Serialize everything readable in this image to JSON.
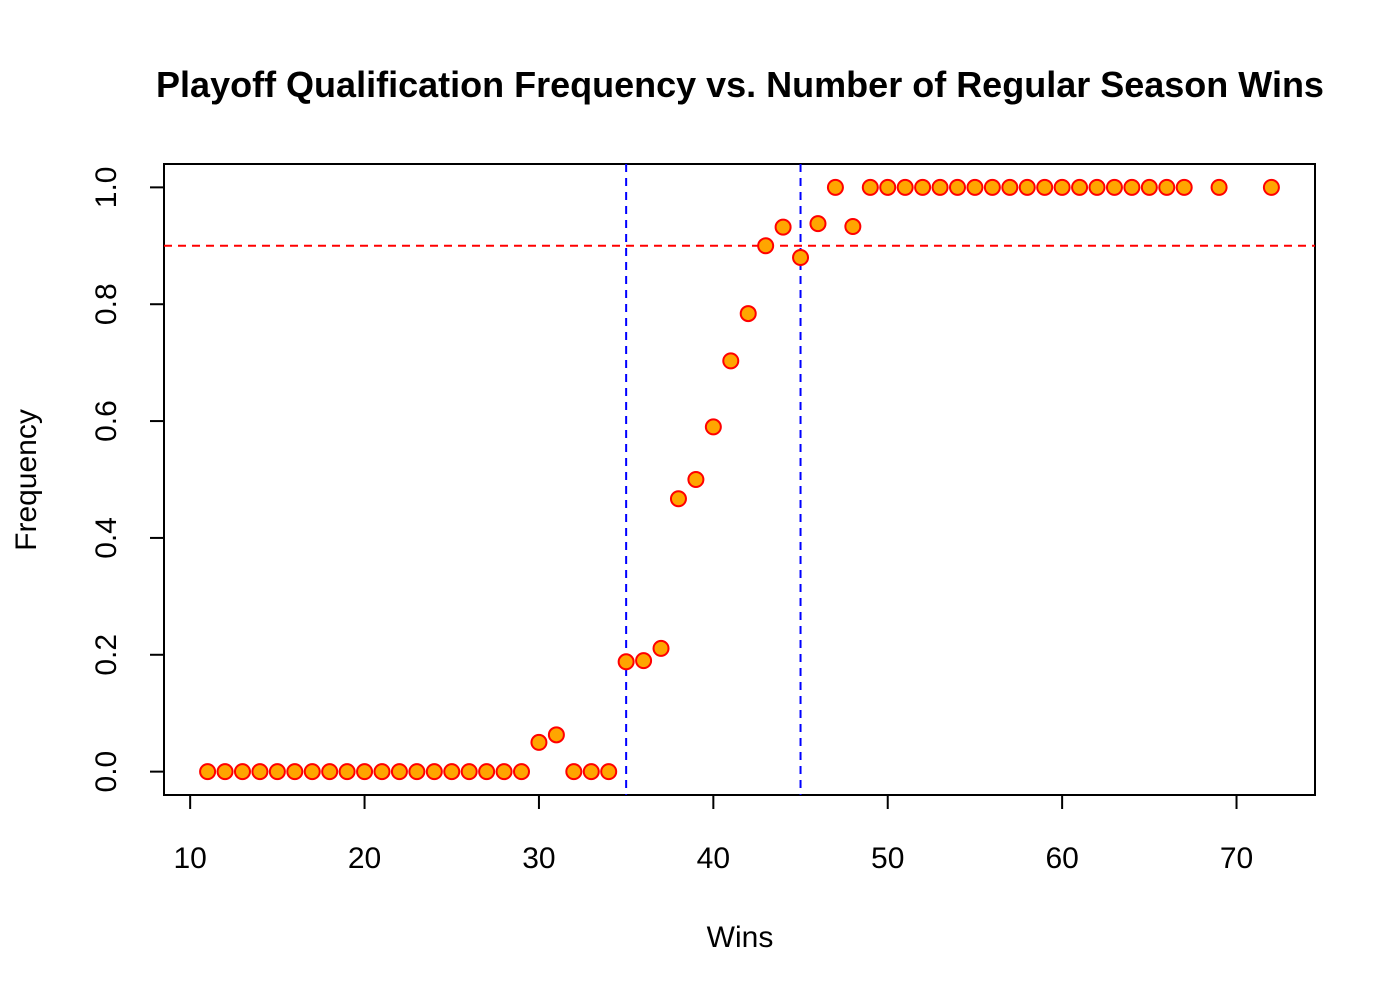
{
  "chart_data": {
    "type": "scatter",
    "title": "Playoff Qualification Frequency vs. Number of Regular Season Wins",
    "xlabel": "Wins",
    "ylabel": "Frequency",
    "xlim": [
      8.5,
      74.5
    ],
    "ylim": [
      -0.04,
      1.04
    ],
    "x_ticks": [
      10,
      20,
      30,
      40,
      50,
      60,
      70
    ],
    "x_tick_labels": [
      "10",
      "20",
      "30",
      "40",
      "50",
      "60",
      "70"
    ],
    "y_ticks": [
      0.0,
      0.2,
      0.4,
      0.6,
      0.8,
      1.0
    ],
    "y_tick_labels": [
      "0.0",
      "0.2",
      "0.4",
      "0.6",
      "0.8",
      "1.0"
    ],
    "grid": false,
    "legend": "none",
    "marker": {
      "fill": "#FFA500",
      "stroke": "#FF0000"
    },
    "reference_lines": [
      {
        "orientation": "horizontal",
        "value": 0.9,
        "color": "#FF0000",
        "style": "dashed"
      },
      {
        "orientation": "vertical",
        "value": 35,
        "color": "#0000FF",
        "style": "dashed"
      },
      {
        "orientation": "vertical",
        "value": 45,
        "color": "#0000FF",
        "style": "dashed"
      }
    ],
    "points": [
      {
        "x": 11,
        "y": 0.0
      },
      {
        "x": 12,
        "y": 0.0
      },
      {
        "x": 13,
        "y": 0.0
      },
      {
        "x": 14,
        "y": 0.0
      },
      {
        "x": 15,
        "y": 0.0
      },
      {
        "x": 16,
        "y": 0.0
      },
      {
        "x": 17,
        "y": 0.0
      },
      {
        "x": 18,
        "y": 0.0
      },
      {
        "x": 19,
        "y": 0.0
      },
      {
        "x": 20,
        "y": 0.0
      },
      {
        "x": 21,
        "y": 0.0
      },
      {
        "x": 22,
        "y": 0.0
      },
      {
        "x": 23,
        "y": 0.0
      },
      {
        "x": 24,
        "y": 0.0
      },
      {
        "x": 25,
        "y": 0.0
      },
      {
        "x": 26,
        "y": 0.0
      },
      {
        "x": 27,
        "y": 0.0
      },
      {
        "x": 28,
        "y": 0.0
      },
      {
        "x": 29,
        "y": 0.0
      },
      {
        "x": 30,
        "y": 0.05
      },
      {
        "x": 31,
        "y": 0.063
      },
      {
        "x": 32,
        "y": 0.0
      },
      {
        "x": 33,
        "y": 0.0
      },
      {
        "x": 34,
        "y": 0.0
      },
      {
        "x": 35,
        "y": 0.188
      },
      {
        "x": 36,
        "y": 0.19
      },
      {
        "x": 37,
        "y": 0.211
      },
      {
        "x": 38,
        "y": 0.467
      },
      {
        "x": 39,
        "y": 0.5
      },
      {
        "x": 40,
        "y": 0.59
      },
      {
        "x": 41,
        "y": 0.703
      },
      {
        "x": 42,
        "y": 0.784
      },
      {
        "x": 43,
        "y": 0.9
      },
      {
        "x": 44,
        "y": 0.932
      },
      {
        "x": 45,
        "y": 0.88
      },
      {
        "x": 46,
        "y": 0.938
      },
      {
        "x": 47,
        "y": 1.0
      },
      {
        "x": 48,
        "y": 0.933
      },
      {
        "x": 49,
        "y": 1.0
      },
      {
        "x": 50,
        "y": 1.0
      },
      {
        "x": 51,
        "y": 1.0
      },
      {
        "x": 52,
        "y": 1.0
      },
      {
        "x": 53,
        "y": 1.0
      },
      {
        "x": 54,
        "y": 1.0
      },
      {
        "x": 55,
        "y": 1.0
      },
      {
        "x": 56,
        "y": 1.0
      },
      {
        "x": 57,
        "y": 1.0
      },
      {
        "x": 58,
        "y": 1.0
      },
      {
        "x": 59,
        "y": 1.0
      },
      {
        "x": 60,
        "y": 1.0
      },
      {
        "x": 61,
        "y": 1.0
      },
      {
        "x": 62,
        "y": 1.0
      },
      {
        "x": 63,
        "y": 1.0
      },
      {
        "x": 64,
        "y": 1.0
      },
      {
        "x": 65,
        "y": 1.0
      },
      {
        "x": 66,
        "y": 1.0
      },
      {
        "x": 67,
        "y": 1.0
      },
      {
        "x": 69,
        "y": 1.0
      },
      {
        "x": 72,
        "y": 1.0
      }
    ]
  }
}
